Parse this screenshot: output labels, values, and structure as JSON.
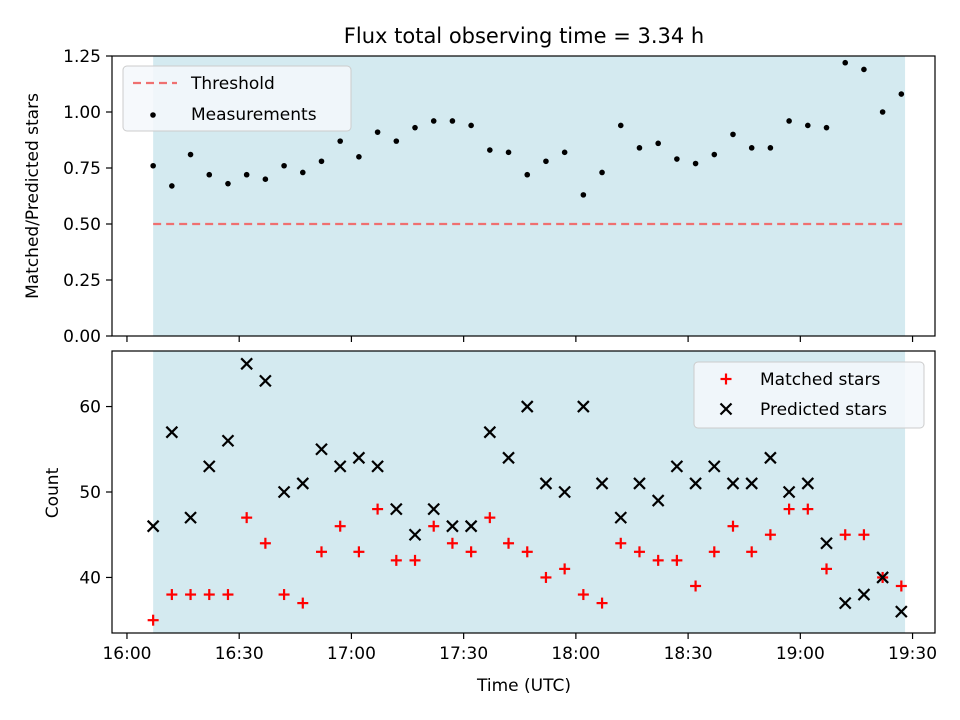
{
  "chart_data": {
    "title": "Flux total observing time = 3.34 h",
    "xlabel": "Time (UTC)",
    "x_ticks": [
      "16:00",
      "16:30",
      "17:00",
      "17:30",
      "18:00",
      "18:30",
      "19:00",
      "19:30"
    ],
    "x_range": [
      "15:56",
      "19:36"
    ],
    "observing_window": [
      "16:07",
      "19:28"
    ],
    "window_color": "#d4eaf0",
    "panels": [
      {
        "type": "scatter",
        "ylabel": "Matched/Predicted stars",
        "ylim": [
          0,
          1.25
        ],
        "y_ticks": [
          "0.00",
          "0.25",
          "0.50",
          "0.75",
          "1.00",
          "1.25"
        ],
        "grid": false,
        "legend_position": "upper-left",
        "threshold": {
          "name": "Threshold",
          "value": 0.5,
          "color": "#ef7070"
        },
        "series": [
          {
            "name": "Measurements",
            "color": "#000000",
            "marker": "dot",
            "x": [
              "16:07",
              "16:12",
              "16:17",
              "16:22",
              "16:27",
              "16:32",
              "16:37",
              "16:42",
              "16:47",
              "16:52",
              "16:57",
              "17:02",
              "17:07",
              "17:12",
              "17:17",
              "17:22",
              "17:27",
              "17:32",
              "17:37",
              "17:42",
              "17:47",
              "17:52",
              "17:57",
              "18:02",
              "18:07",
              "18:12",
              "18:17",
              "18:22",
              "18:27",
              "18:32",
              "18:37",
              "18:42",
              "18:47",
              "18:52",
              "18:57",
              "19:02",
              "19:07",
              "19:12",
              "19:17",
              "19:22",
              "19:27"
            ],
            "y": [
              0.76,
              0.67,
              0.81,
              0.72,
              0.68,
              0.72,
              0.7,
              0.76,
              0.73,
              0.78,
              0.87,
              0.8,
              0.91,
              0.87,
              0.93,
              0.96,
              0.96,
              0.94,
              0.83,
              0.82,
              0.72,
              0.78,
              0.82,
              0.63,
              0.73,
              0.94,
              0.84,
              0.86,
              0.79,
              0.77,
              0.81,
              0.9,
              0.84,
              0.84,
              0.96,
              0.94,
              0.93,
              1.22,
              1.19,
              1.0,
              1.08
            ]
          }
        ]
      },
      {
        "type": "scatter",
        "ylabel": "Count",
        "ylim": [
          33.5,
          66.5
        ],
        "y_ticks": [
          "40",
          "50",
          "60"
        ],
        "grid": false,
        "legend_position": "upper-right",
        "series": [
          {
            "name": "Matched stars",
            "color": "#ff0000",
            "marker": "plus",
            "x": [
              "16:07",
              "16:12",
              "16:17",
              "16:22",
              "16:27",
              "16:32",
              "16:37",
              "16:42",
              "16:47",
              "16:52",
              "16:57",
              "17:02",
              "17:07",
              "17:12",
              "17:17",
              "17:22",
              "17:27",
              "17:32",
              "17:37",
              "17:42",
              "17:47",
              "17:52",
              "17:57",
              "18:02",
              "18:07",
              "18:12",
              "18:17",
              "18:22",
              "18:27",
              "18:32",
              "18:37",
              "18:42",
              "18:47",
              "18:52",
              "18:57",
              "19:02",
              "19:07",
              "19:12",
              "19:17",
              "19:22",
              "19:27"
            ],
            "y": [
              35,
              38,
              38,
              38,
              38,
              47,
              44,
              38,
              37,
              43,
              46,
              43,
              48,
              42,
              42,
              46,
              44,
              43,
              47,
              44,
              43,
              40,
              41,
              38,
              37,
              44,
              43,
              42,
              42,
              39,
              43,
              46,
              43,
              45,
              48,
              48,
              41,
              45,
              45,
              40,
              39
            ]
          },
          {
            "name": "Predicted stars",
            "color": "#000000",
            "marker": "x",
            "x": [
              "16:07",
              "16:12",
              "16:17",
              "16:22",
              "16:27",
              "16:32",
              "16:37",
              "16:42",
              "16:47",
              "16:52",
              "16:57",
              "17:02",
              "17:07",
              "17:12",
              "17:17",
              "17:22",
              "17:27",
              "17:32",
              "17:37",
              "17:42",
              "17:47",
              "17:52",
              "17:57",
              "18:02",
              "18:07",
              "18:12",
              "18:17",
              "18:22",
              "18:27",
              "18:32",
              "18:37",
              "18:42",
              "18:47",
              "18:52",
              "18:57",
              "19:02",
              "19:07",
              "19:12",
              "19:17",
              "19:22",
              "19:27"
            ],
            "y": [
              46,
              57,
              47,
              53,
              56,
              65,
              63,
              50,
              51,
              55,
              53,
              54,
              53,
              48,
              45,
              48,
              46,
              46,
              57,
              54,
              60,
              51,
              50,
              60,
              51,
              47,
              51,
              49,
              53,
              51,
              53,
              51,
              51,
              54,
              50,
              51,
              44,
              37,
              38,
              40,
              36
            ]
          }
        ]
      }
    ]
  }
}
